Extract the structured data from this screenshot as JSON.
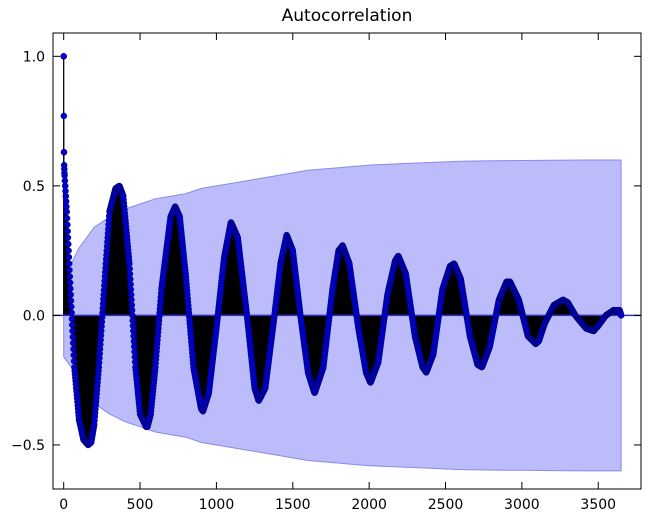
{
  "chart_data": {
    "type": "line",
    "title": "Autocorrelation",
    "xlabel": "",
    "ylabel": "",
    "xlim": [
      -70,
      3780
    ],
    "ylim": [
      -0.67,
      1.09
    ],
    "x_ticks": [
      0,
      500,
      1000,
      1500,
      2000,
      2500,
      3000,
      3500
    ],
    "y_ticks": [
      -0.5,
      0.0,
      0.5,
      1.0
    ],
    "x_tick_labels": [
      "0",
      "500",
      "1000",
      "1500",
      "2000",
      "2500",
      "3000",
      "3500"
    ],
    "y_tick_labels": [
      "−0.5",
      "0.0",
      "0.5",
      "1.0"
    ],
    "grid": false,
    "legend": "none",
    "baseline": 0.0,
    "max_lag": 3650,
    "series": [
      {
        "values_note_free": true,
        "style": "stem",
        "x": [
          0,
          1,
          2,
          3,
          5,
          10,
          20,
          40,
          70,
          100,
          130,
          160,
          180,
          200,
          230,
          270,
          300,
          340,
          365,
          390,
          430,
          470,
          500,
          540,
          548,
          570,
          600,
          640,
          700,
          730,
          760,
          800,
          850,
          900,
          912,
          950,
          1000,
          1050,
          1095,
          1140,
          1200,
          1250,
          1277,
          1320,
          1380,
          1420,
          1460,
          1500,
          1550,
          1600,
          1643,
          1700,
          1760,
          1800,
          1826,
          1870,
          1930,
          1980,
          2009,
          2060,
          2120,
          2170,
          2191,
          2240,
          2300,
          2350,
          2374,
          2420,
          2480,
          2530,
          2557,
          2600,
          2660,
          2710,
          2739,
          2790,
          2850,
          2900,
          2922,
          2980,
          3040,
          3090,
          3110,
          3150,
          3210,
          3270,
          3300,
          3350,
          3420,
          3470,
          3500,
          3550,
          3600,
          3640,
          3650
        ],
        "values": [
          1.0,
          0.77,
          0.63,
          0.58,
          0.55,
          0.5,
          0.4,
          0.15,
          -0.2,
          -0.4,
          -0.48,
          -0.5,
          -0.49,
          -0.42,
          -0.2,
          0.15,
          0.4,
          0.49,
          0.5,
          0.46,
          0.2,
          -0.2,
          -0.38,
          -0.43,
          -0.43,
          -0.38,
          -0.2,
          0.1,
          0.38,
          0.42,
          0.38,
          0.15,
          -0.2,
          -0.36,
          -0.37,
          -0.3,
          -0.05,
          0.22,
          0.36,
          0.3,
          0.0,
          -0.28,
          -0.33,
          -0.28,
          0.0,
          0.2,
          0.31,
          0.25,
          0.0,
          -0.22,
          -0.3,
          -0.2,
          0.1,
          0.25,
          0.27,
          0.2,
          -0.05,
          -0.22,
          -0.26,
          -0.18,
          0.08,
          0.21,
          0.23,
          0.16,
          -0.08,
          -0.2,
          -0.22,
          -0.15,
          0.1,
          0.19,
          0.2,
          0.14,
          -0.08,
          -0.19,
          -0.2,
          -0.12,
          0.06,
          0.13,
          0.13,
          0.06,
          -0.08,
          -0.11,
          -0.1,
          -0.03,
          0.04,
          0.06,
          0.05,
          0.0,
          -0.05,
          -0.06,
          -0.04,
          0.0,
          0.02,
          0.02,
          0.0
        ]
      }
    ],
    "confidence_band": {
      "x": [
        0,
        50,
        100,
        150,
        200,
        300,
        400,
        500,
        600,
        700,
        800,
        900,
        1000,
        1200,
        1400,
        1600,
        1800,
        2000,
        2200,
        2400,
        2600,
        2800,
        3000,
        3200,
        3400,
        3650
      ],
      "upper": [
        0.16,
        0.2,
        0.26,
        0.3,
        0.34,
        0.38,
        0.41,
        0.43,
        0.45,
        0.46,
        0.47,
        0.49,
        0.5,
        0.52,
        0.54,
        0.56,
        0.57,
        0.58,
        0.585,
        0.59,
        0.595,
        0.597,
        0.598,
        0.599,
        0.6,
        0.6
      ]
    },
    "colors": {
      "marker": "#0000c8",
      "stem": "#000000",
      "band_fill": "#bcbcfb",
      "band_edge": "#8a8ae6",
      "baseline": "#3333bb"
    }
  }
}
